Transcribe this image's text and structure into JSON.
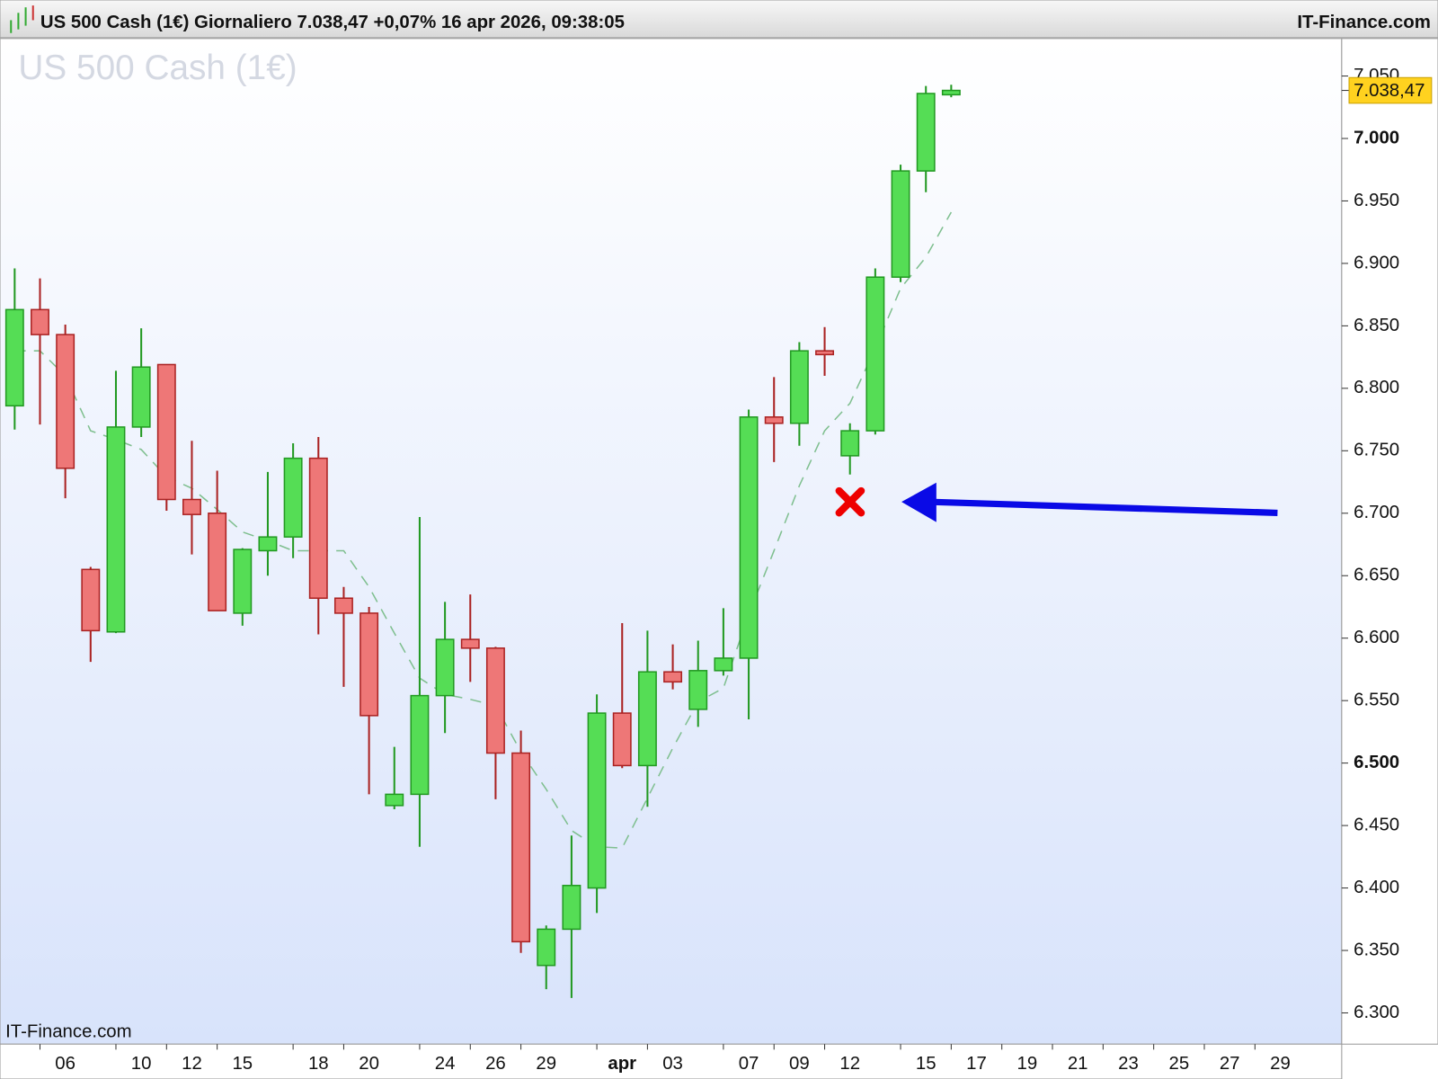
{
  "header": {
    "title": "US 500 Cash (1€) Giornaliero 7.038,47 +0,07% 16 apr 2026, 09:38:05",
    "brand": "IT-Finance.com"
  },
  "chart_data": {
    "type": "candlestick",
    "title": "US 500 Cash (1€)",
    "footer": "IT-Finance.com",
    "up_color": "#55dd55",
    "down_color": "#ee7777",
    "last_price": {
      "value": 7038.47,
      "label": "7.038,47"
    },
    "categories": [
      null,
      null,
      "06",
      null,
      null,
      "10",
      null,
      "12",
      null,
      "15",
      null,
      null,
      "18",
      null,
      "20",
      null,
      null,
      "24",
      null,
      "26",
      null,
      "29",
      null,
      null,
      "apr",
      null,
      "03",
      null,
      null,
      "07",
      null,
      "09",
      null,
      "12",
      null,
      null,
      "15",
      null,
      "17",
      null,
      "19",
      null,
      "21",
      null,
      "23",
      null,
      "25",
      null,
      "27",
      null,
      "29"
    ],
    "open": [
      6786,
      6863,
      6843,
      6655,
      6605,
      6769,
      6819,
      6711,
      6700,
      6620,
      6670,
      6681,
      6744,
      6632,
      6620,
      6466,
      6475,
      6554,
      6599,
      6592,
      6508,
      6338,
      6367,
      6400,
      6540,
      6498,
      6573,
      6543,
      6574,
      6584,
      6777,
      6772,
      6830,
      6746,
      6766,
      6889,
      6974,
      7035,
      null,
      null,
      null,
      null,
      null,
      null,
      null,
      null,
      null,
      null,
      null,
      null,
      null
    ],
    "high": [
      6896,
      6888,
      6851,
      6657,
      6814,
      6848,
      6819,
      6758,
      6734,
      6672,
      6733,
      6756,
      6761,
      6641,
      6625,
      6513,
      6697,
      6629,
      6635,
      6593,
      6526,
      6370,
      6442,
      6555,
      6612,
      6606,
      6595,
      6598,
      6624,
      6783,
      6809,
      6837,
      6849,
      6772,
      6896,
      6979,
      7042,
      7043,
      null,
      null,
      null,
      null,
      null,
      null,
      null,
      null,
      null,
      null,
      null,
      null,
      null
    ],
    "low": [
      6767,
      6771,
      6712,
      6581,
      6604,
      6761,
      6702,
      6667,
      6622,
      6610,
      6650,
      6664,
      6603,
      6561,
      6475,
      6463,
      6433,
      6524,
      6565,
      6471,
      6348,
      6319,
      6312,
      6380,
      6496,
      6465,
      6559,
      6529,
      6570,
      6535,
      6741,
      6754,
      6810,
      6731,
      6763,
      6885,
      6957,
      7033,
      null,
      null,
      null,
      null,
      null,
      null,
      null,
      null,
      null,
      null,
      null,
      null,
      null
    ],
    "close": [
      6863,
      6843,
      6736,
      6606,
      6769,
      6817,
      6711,
      6699,
      6622,
      6671,
      6681,
      6744,
      6632,
      6620,
      6538,
      6475,
      6554,
      6599,
      6592,
      6508,
      6357,
      6367,
      6402,
      6540,
      6498,
      6573,
      6565,
      6574,
      6584,
      6777,
      6772,
      6830,
      6827,
      6766,
      6889,
      6974,
      7036,
      7038.47,
      null,
      null,
      null,
      null,
      null,
      null,
      null,
      null,
      null,
      null,
      null,
      null,
      null
    ],
    "moving_average": [
      6830,
      6830,
      6810,
      6766,
      6759,
      6751,
      6729,
      6720,
      6703,
      6685,
      6678,
      6670,
      6670,
      6670,
      6641,
      6604,
      6568,
      6555,
      6551,
      6546,
      6509,
      6479,
      6446,
      6433,
      6432,
      6472,
      6512,
      6549,
      6560,
      6619,
      6670,
      6722,
      6766,
      6788,
      6832,
      6880,
      6905,
      6941,
      null,
      null,
      null,
      null,
      null,
      null,
      null,
      null,
      null,
      null,
      null,
      null,
      null
    ],
    "ylim": [
      6275,
      7080
    ],
    "yticks": [
      {
        "value": 6300,
        "label": "6.300"
      },
      {
        "value": 6350,
        "label": "6.350"
      },
      {
        "value": 6400,
        "label": "6.400"
      },
      {
        "value": 6450,
        "label": "6.450"
      },
      {
        "value": 6500,
        "label": "6.500"
      },
      {
        "value": 6550,
        "label": "6.550"
      },
      {
        "value": 6600,
        "label": "6.600"
      },
      {
        "value": 6650,
        "label": "6.650"
      },
      {
        "value": 6700,
        "label": "6.700"
      },
      {
        "value": 6750,
        "label": "6.750"
      },
      {
        "value": 6800,
        "label": "6.800"
      },
      {
        "value": 6850,
        "label": "6.850"
      },
      {
        "value": 6900,
        "label": "6.900"
      },
      {
        "value": 6950,
        "label": "6.950"
      },
      {
        "value": 7000,
        "label": "7.000"
      },
      {
        "value": 7050,
        "label": "7.050"
      }
    ]
  }
}
